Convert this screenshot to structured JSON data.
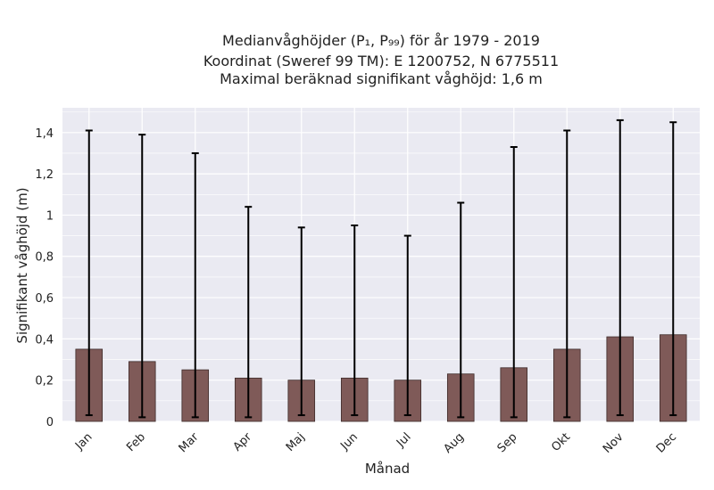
{
  "chart_data": {
    "type": "bar",
    "title_lines": [
      "Medianvåghöjder (P₁, P₉₉) för år 1979 - 2019",
      "Koordinat (Sweref 99 TM): E 1200752, N 6775511",
      "Maximal beräknad signifikant våghöjd: 1,6 m"
    ],
    "xlabel": "Månad",
    "ylabel": "Signifikant våghöjd (m)",
    "categories": [
      "Jan",
      "Feb",
      "Mar",
      "Apr",
      "Maj",
      "Jun",
      "Jul",
      "Aug",
      "Sep",
      "Okt",
      "Nov",
      "Dec"
    ],
    "values": [
      0.35,
      0.29,
      0.25,
      0.21,
      0.2,
      0.21,
      0.2,
      0.23,
      0.26,
      0.35,
      0.41,
      0.42
    ],
    "p1": [
      0.03,
      0.02,
      0.02,
      0.02,
      0.03,
      0.03,
      0.03,
      0.02,
      0.02,
      0.02,
      0.03,
      0.03
    ],
    "p99": [
      1.41,
      1.39,
      1.3,
      1.04,
      0.94,
      0.95,
      0.9,
      1.06,
      1.33,
      1.41,
      1.46,
      1.45
    ],
    "ylim": [
      0,
      1.52
    ],
    "yticks": [
      0,
      0.2,
      0.4,
      0.6,
      0.8,
      1.0,
      1.2,
      1.4
    ],
    "ytick_labels": [
      "0",
      "0,2",
      "0,4",
      "0,6",
      "0,8",
      "1",
      "1,2",
      "1,4"
    ],
    "grid": true,
    "bar_color": "#7f5a58",
    "background_color": "#eaeaf2"
  }
}
